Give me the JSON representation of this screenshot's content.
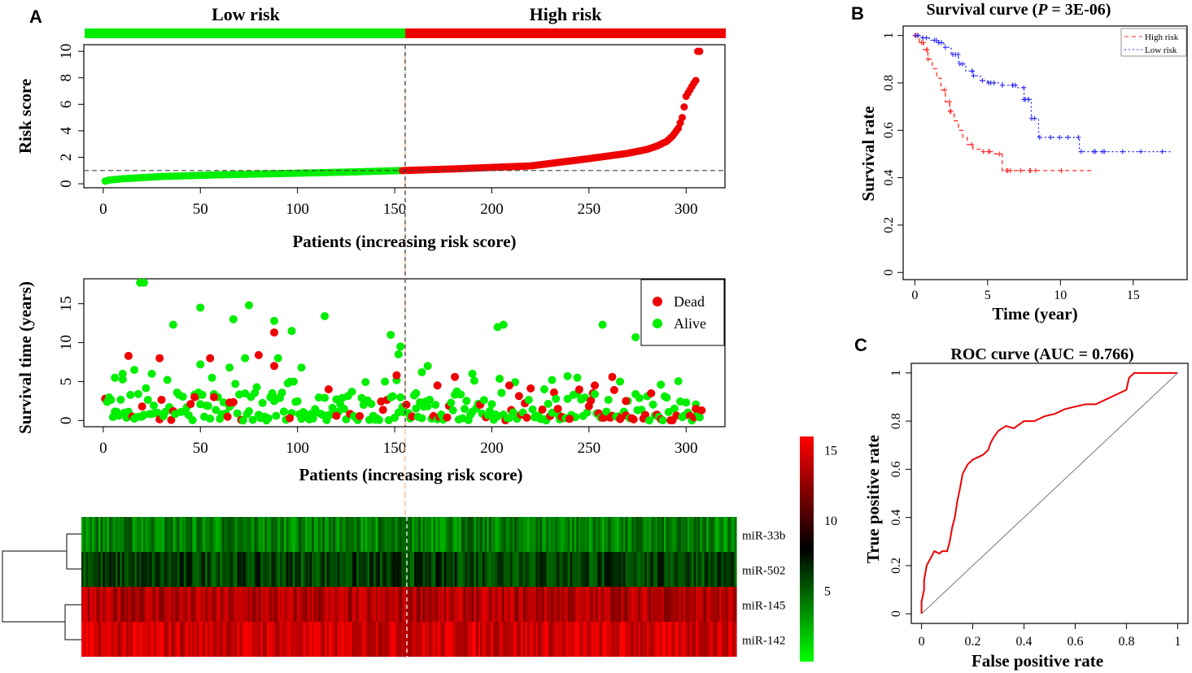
{
  "panels": {
    "a": "A",
    "b": "B",
    "c": "C"
  },
  "risk_header": {
    "low": "Low risk",
    "high": "High risk",
    "low_color": "#00ee00",
    "high_color": "#ee0000"
  },
  "chart_data": [
    {
      "id": "risk-score",
      "type": "scatter",
      "title": "",
      "xlabel": "Patients (increasing risk score)",
      "ylabel": "Risk score",
      "xlim": [
        -10,
        320
      ],
      "ylim": [
        -0.3,
        10.5
      ],
      "xticks": [
        0,
        50,
        100,
        150,
        200,
        250,
        300
      ],
      "yticks": [
        0,
        2,
        4,
        6,
        8,
        10
      ],
      "cutoff_patient": 153,
      "cutoff_score": 1.0,
      "n_patients": 307,
      "series": [
        {
          "name": "Low risk",
          "color": "#00ee00",
          "patients": [
            1,
            153
          ],
          "score_range": [
            0.2,
            1.0
          ]
        },
        {
          "name": "High risk",
          "color": "#ee0000",
          "patients": [
            154,
            307
          ],
          "score_range": [
            1.0,
            10.0
          ]
        }
      ],
      "curve_knots": {
        "patient": [
          1,
          3,
          10,
          30,
          60,
          100,
          130,
          153,
          154,
          180,
          220,
          250,
          270,
          280,
          285,
          290,
          293,
          296,
          298,
          300,
          302,
          304,
          305,
          306,
          307
        ],
        "score": [
          0.2,
          0.28,
          0.38,
          0.55,
          0.68,
          0.8,
          0.9,
          1.0,
          1.0,
          1.12,
          1.35,
          1.9,
          2.3,
          2.6,
          2.85,
          3.2,
          3.6,
          4.2,
          5.0,
          6.6,
          7.1,
          7.6,
          7.8,
          10.0,
          10.0
        ]
      }
    },
    {
      "id": "survival-time",
      "type": "scatter",
      "xlabel": "Patients (increasing risk score)",
      "ylabel": "Survival time (years)",
      "xlim": [
        -10,
        320
      ],
      "ylim": [
        -0.8,
        18.2
      ],
      "xticks": [
        0,
        50,
        100,
        150,
        200,
        250,
        300
      ],
      "yticks": [
        0,
        5,
        10,
        15
      ],
      "legend": [
        {
          "label": "Dead",
          "color": "#ee0000"
        },
        {
          "label": "Alive",
          "color": "#00ee00"
        }
      ],
      "legend_position": "top-right",
      "highlight_points": {
        "alive": [
          [
            19,
            17.7
          ],
          [
            21,
            17.7
          ],
          [
            50,
            14.5
          ],
          [
            75,
            14.8
          ],
          [
            36,
            12.3
          ],
          [
            67,
            13
          ],
          [
            114,
            13.4
          ],
          [
            97,
            11.5
          ],
          [
            88,
            12.8
          ],
          [
            148,
            11
          ],
          [
            153,
            9.5
          ],
          [
            206,
            12.3
          ],
          [
            203,
            12
          ],
          [
            257,
            12.3
          ],
          [
            274,
            10.7
          ],
          [
            152,
            8.5
          ],
          [
            6,
            5.5
          ],
          [
            10,
            6
          ],
          [
            16,
            6.5
          ],
          [
            25,
            6
          ],
          [
            50,
            7.2
          ],
          [
            65,
            6.8
          ],
          [
            73,
            8
          ],
          [
            90,
            8
          ],
          [
            102,
            6.8
          ],
          [
            164,
            6.2
          ],
          [
            167,
            7
          ],
          [
            190,
            6
          ],
          [
            231,
            5.2
          ],
          [
            244,
            5.5
          ],
          [
            266,
            5
          ],
          [
            287,
            4.6
          ],
          [
            161,
            3.5
          ],
          [
            227,
            4
          ],
          [
            239,
            5.7
          ]
        ],
        "dead": [
          [
            13,
            8.3
          ],
          [
            29,
            8
          ],
          [
            55,
            8
          ],
          [
            80,
            8.4
          ],
          [
            88,
            11.3
          ],
          [
            88,
            7
          ],
          [
            151,
            5.8
          ],
          [
            181,
            5.6
          ],
          [
            172,
            4.5
          ],
          [
            262,
            5.6
          ],
          [
            253,
            4.5
          ],
          [
            209,
            4.5
          ],
          [
            116,
            4
          ],
          [
            47,
            3
          ],
          [
            57,
            3
          ],
          [
            65,
            2.3
          ],
          [
            20,
            1.8
          ],
          [
            96,
            0.3
          ],
          [
            120,
            0.6
          ],
          [
            234,
            1.5
          ],
          [
            240,
            0.2
          ],
          [
            269,
            2.5
          ],
          [
            305,
            1.5
          ],
          [
            308,
            1.3
          ]
        ]
      }
    },
    {
      "id": "mirna-heatmap",
      "type": "heatmap",
      "rows": [
        "miR-33b",
        "miR-502",
        "miR-145",
        "miR-142"
      ],
      "n_columns": 307,
      "row_base_values": [
        4,
        6,
        13.5,
        14.5
      ],
      "colorbar": {
        "ticks": [
          5,
          10,
          15
        ],
        "min": 0,
        "max": 16,
        "low": "#00ff00",
        "mid": "#000000",
        "high": "#ff0000"
      },
      "dendrogram": [
        [
          "miR-33b",
          "miR-502"
        ],
        [
          "miR-145",
          "miR-142"
        ]
      ]
    },
    {
      "id": "survival-curve",
      "type": "line",
      "title": "Survival curve (",
      "title_p": "P",
      "title_rest": " = 3E-06)",
      "xlabel": "Time (year)",
      "ylabel": "Survival rate",
      "xlim": [
        -0.8,
        18.7
      ],
      "ylim": [
        -0.03,
        1.04
      ],
      "xticks": [
        0,
        5,
        10,
        15
      ],
      "yticks": [
        0,
        0.2,
        0.4,
        0.6,
        0.8,
        1.0
      ],
      "series": [
        {
          "name": "High risk",
          "color": "#ff2a2a",
          "dash": "5,4",
          "x": [
            0,
            0.3,
            0.6,
            0.9,
            1.2,
            1.5,
            1.8,
            2.1,
            2.4,
            2.7,
            3,
            3.3,
            3.6,
            4,
            4.5,
            5,
            5.5,
            6,
            8,
            10,
            12.3
          ],
          "y": [
            1,
            0.97,
            0.94,
            0.9,
            0.86,
            0.82,
            0.77,
            0.72,
            0.68,
            0.64,
            0.6,
            0.57,
            0.54,
            0.52,
            0.51,
            0.51,
            0.5,
            0.43,
            0.43,
            0.43,
            0.43
          ]
        },
        {
          "name": "Low risk",
          "color": "#2a2aff",
          "dash": "2,3",
          "x": [
            0,
            0.5,
            1,
            1.5,
            2,
            2.5,
            3,
            3.5,
            4,
            4.5,
            5,
            6,
            7,
            7.5,
            8,
            8.5,
            9,
            10,
            11,
            11.3,
            13,
            15,
            17.6
          ],
          "y": [
            1,
            0.99,
            0.98,
            0.97,
            0.95,
            0.92,
            0.88,
            0.85,
            0.83,
            0.81,
            0.8,
            0.79,
            0.78,
            0.73,
            0.65,
            0.57,
            0.57,
            0.57,
            0.57,
            0.51,
            0.51,
            0.51,
            0.51
          ]
        }
      ],
      "legend_position": "top-right"
    },
    {
      "id": "roc-curve",
      "type": "line",
      "title": "ROC curve (AUC = 0.766)",
      "xlabel": "False positive rate",
      "ylabel": "True positive rate",
      "xlim": [
        -0.04,
        1.04
      ],
      "ylim": [
        -0.04,
        1.04
      ],
      "xticks": [
        0,
        0.2,
        0.4,
        0.6,
        0.8,
        1.0
      ],
      "yticks": [
        0,
        0.2,
        0.4,
        0.6,
        0.8,
        1.0
      ],
      "auc": 0.766,
      "series": [
        {
          "name": "ROC",
          "color": "#ee0000",
          "x": [
            0,
            0,
            0.01,
            0.01,
            0.02,
            0.03,
            0.04,
            0.05,
            0.07,
            0.08,
            0.1,
            0.11,
            0.12,
            0.13,
            0.14,
            0.15,
            0.16,
            0.18,
            0.2,
            0.22,
            0.24,
            0.26,
            0.27,
            0.28,
            0.3,
            0.33,
            0.36,
            0.4,
            0.44,
            0.48,
            0.52,
            0.56,
            0.6,
            0.64,
            0.68,
            0.72,
            0.76,
            0.78,
            0.8,
            0.81,
            0.83,
            0.86,
            0.9,
            0.95,
            1.0
          ],
          "y": [
            0,
            0.05,
            0.1,
            0.14,
            0.2,
            0.22,
            0.24,
            0.26,
            0.25,
            0.26,
            0.26,
            0.3,
            0.36,
            0.4,
            0.47,
            0.52,
            0.58,
            0.62,
            0.64,
            0.65,
            0.66,
            0.68,
            0.71,
            0.73,
            0.76,
            0.78,
            0.77,
            0.8,
            0.8,
            0.82,
            0.83,
            0.85,
            0.86,
            0.87,
            0.87,
            0.89,
            0.91,
            0.92,
            0.93,
            0.98,
            1.0,
            1.0,
            1.0,
            1.0,
            1.0
          ]
        },
        {
          "name": "Diagonal",
          "color": "#777777",
          "x": [
            0,
            1
          ],
          "y": [
            0,
            1
          ]
        }
      ]
    }
  ]
}
